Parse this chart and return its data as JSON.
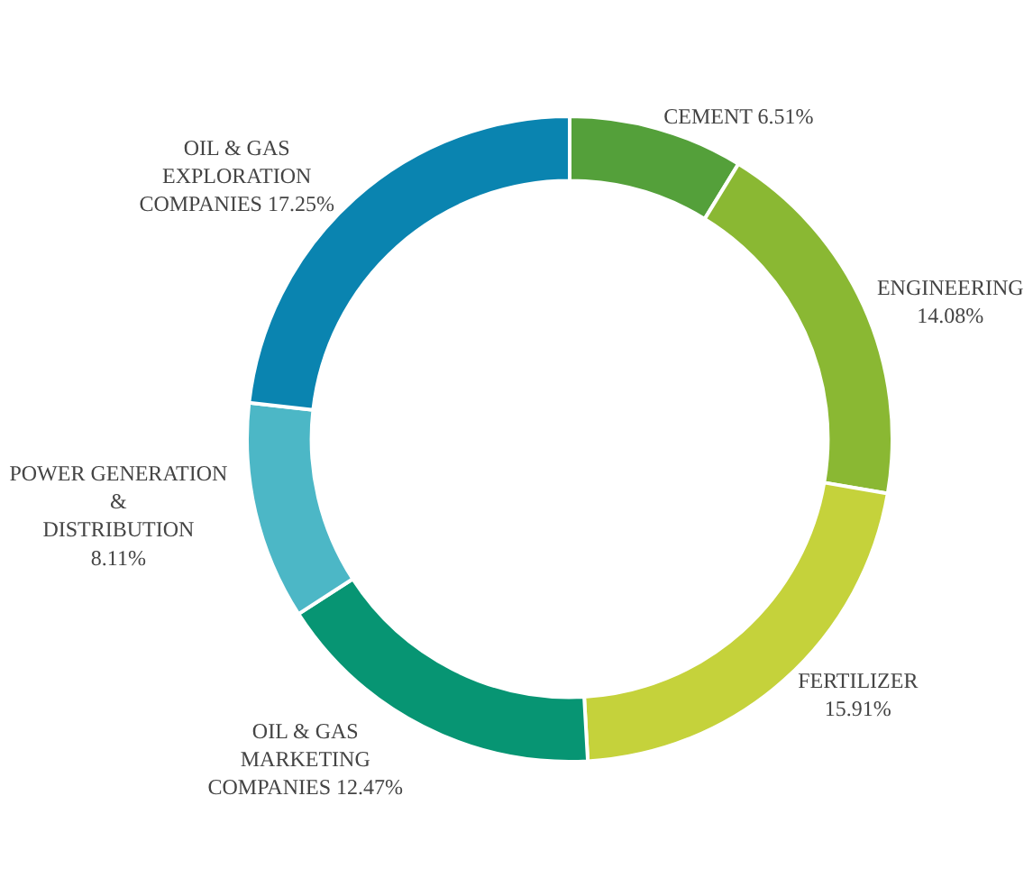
{
  "chart_data": {
    "type": "donut",
    "categories": [
      "CEMENT",
      "ENGINEERING",
      "FERTILIZER",
      "OIL & GAS MARKETING COMPANIES",
      "POWER GENERATION & DISTRIBUTION",
      "OIL & GAS EXPLORATION COMPANIES"
    ],
    "values": [
      6.51,
      14.08,
      15.91,
      12.47,
      8.11,
      17.25
    ],
    "value_labels": [
      "6.51%",
      "14.08%",
      "15.91%",
      "12.47%",
      "8.11%",
      "17.25%"
    ],
    "colors": [
      "#54a03a",
      "#8ab833",
      "#c5d23b",
      "#079573",
      "#4cb7c6",
      "#0a84b0"
    ],
    "legend": false
  }
}
